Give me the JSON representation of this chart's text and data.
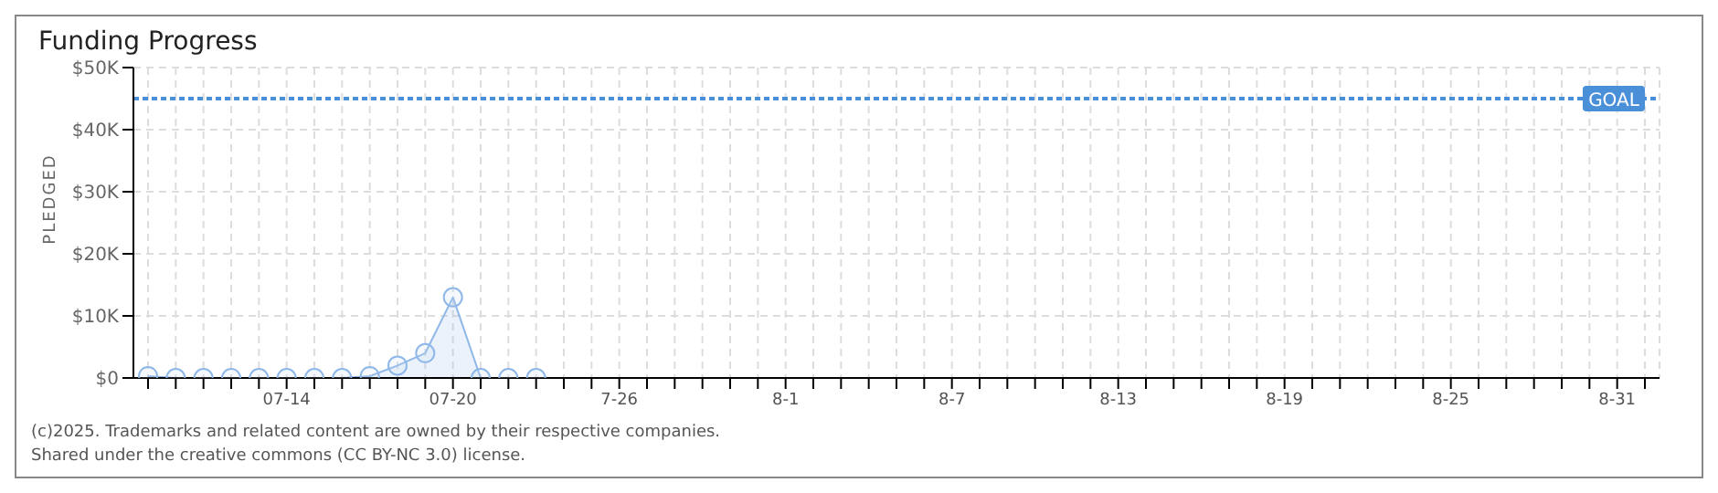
{
  "chart_data": {
    "type": "area",
    "title": "Funding Progress",
    "ylabel": "PLEDGED",
    "categories": [
      null,
      null,
      null,
      null,
      null,
      "07-14",
      null,
      null,
      null,
      null,
      null,
      "07-20",
      null,
      null,
      null,
      null,
      null,
      "7-26",
      null,
      null,
      null,
      null,
      null,
      "8-1",
      null,
      null,
      null,
      null,
      null,
      "8-7",
      null,
      null,
      null,
      null,
      null,
      "8-13",
      null,
      null,
      null,
      null,
      null,
      "8-19",
      null,
      null,
      null,
      null,
      null,
      "8-25",
      null,
      null,
      null,
      null,
      null,
      "8-31",
      null
    ],
    "series": [
      {
        "color": "#8fb8e8",
        "values": [
          300,
          0,
          0,
          0,
          0,
          0,
          0,
          0,
          300,
          2000,
          4000,
          13000,
          0,
          0,
          0,
          null,
          null,
          null,
          null,
          null,
          null,
          null,
          null,
          null,
          null,
          null,
          null,
          null,
          null,
          null,
          null,
          null,
          null,
          null,
          null,
          null,
          null,
          null,
          null,
          null,
          null,
          null,
          null,
          null,
          null,
          null,
          null,
          null,
          null,
          null,
          null,
          null,
          null,
          null,
          null
        ]
      }
    ],
    "ylim": [
      0,
      50000
    ],
    "yticks": [
      {
        "value": 0,
        "label": "$0"
      },
      {
        "value": 10000,
        "label": "$10K"
      },
      {
        "value": 20000,
        "label": "$20K"
      },
      {
        "value": 30000,
        "label": "$30K"
      },
      {
        "value": 40000,
        "label": "$40K"
      },
      {
        "value": 50000,
        "label": "$50K"
      }
    ],
    "ref_lines": [
      {
        "axis": "y",
        "value": 45000,
        "label": "GOAL",
        "color": "#4a90d9",
        "line_style": "dotted"
      }
    ],
    "grid": true,
    "marker": "circle",
    "annotations": [
      "(c)2025. Trademarks and related content are owned by their respective companies.",
      "Shared under the creative commons (CC BY-NC 3.0) license."
    ]
  }
}
